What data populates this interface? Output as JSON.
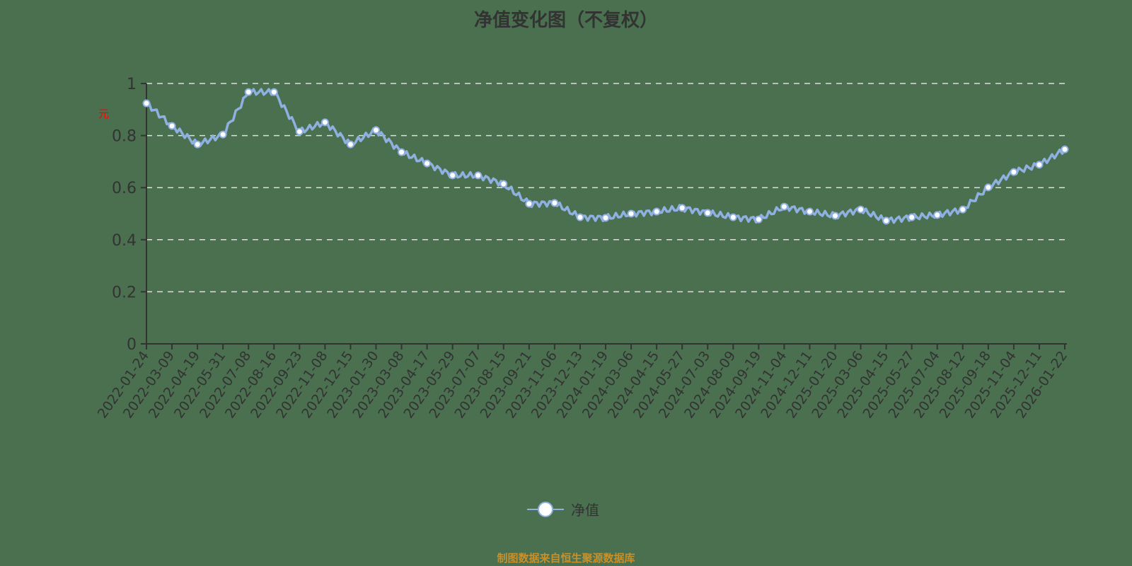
{
  "title": "净值变化图（不复权）",
  "y_unit_label": "元",
  "legend": {
    "label": "净值",
    "line_color": "#8fb0e0",
    "marker_fill": "#ffffff"
  },
  "source": "制图数据来自恒生聚源数据库",
  "colors": {
    "background": "#4a7050",
    "line": "#8fb0e0",
    "axis": "#333333",
    "grid": "#dddddd",
    "source_text": "#c8902a",
    "unit_text": "#ff0000"
  },
  "chart_data": {
    "type": "line",
    "title": "净值变化图（不复权）",
    "xlabel": "",
    "ylabel": "元",
    "ylim": [
      0,
      1
    ],
    "yticks": [
      0,
      0.2,
      0.4,
      0.6,
      0.8,
      1
    ],
    "grid": "horizontal dashed",
    "legend_position": "bottom-center",
    "categories": [
      "2022-01-24",
      "2022-03-09",
      "2022-04-19",
      "2022-05-31",
      "2022-07-08",
      "2022-08-16",
      "2022-09-23",
      "2022-11-08",
      "2022-12-15",
      "2023-01-30",
      "2023-03-08",
      "2023-04-17",
      "2023-05-29",
      "2023-07-07",
      "2023-08-15",
      "2023-09-21",
      "2023-11-06",
      "2023-12-13",
      "2024-01-19",
      "2024-03-06",
      "2024-04-15",
      "2024-05-27",
      "2024-07-03",
      "2024-08-09",
      "2024-09-19",
      "2024-11-04",
      "2024-12-11",
      "2025-01-20",
      "2025-03-06",
      "2025-04-15",
      "2025-05-27",
      "2025-07-04",
      "2025-08-12",
      "2025-09-18",
      "2025-11-04",
      "2025-12-11",
      "2026-01-22"
    ],
    "series": [
      {
        "name": "净值",
        "values": [
          0.924,
          0.837,
          0.766,
          0.804,
          0.967,
          0.967,
          0.815,
          0.851,
          0.766,
          0.821,
          0.736,
          0.693,
          0.647,
          0.647,
          0.614,
          0.538,
          0.541,
          0.486,
          0.484,
          0.5,
          0.508,
          0.522,
          0.503,
          0.486,
          0.478,
          0.527,
          0.508,
          0.492,
          0.516,
          0.473,
          0.486,
          0.495,
          0.516,
          0.601,
          0.66,
          0.688,
          0.747
        ]
      }
    ]
  }
}
